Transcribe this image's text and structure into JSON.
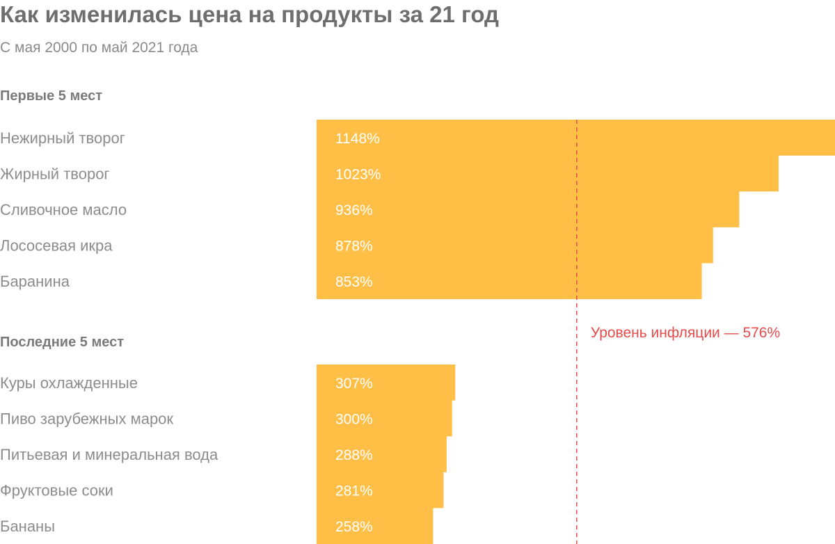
{
  "title": "Как изменилась цена на продукты за 21 год",
  "subtitle": "С мая 2000 по май 2021 года",
  "colors": {
    "bar": "#ffbf47",
    "reference": "#e84a4a",
    "text": "#8c8c8c",
    "title": "#6e6e6e"
  },
  "chart_data": [
    {
      "type": "bar",
      "orientation": "horizontal",
      "group_title": "Первые 5 мест",
      "categories": [
        "Нежирный творог",
        "Жирный творог",
        "Сливочное масло",
        "Лососевая икра",
        "Баранина"
      ],
      "values": [
        1148,
        1023,
        936,
        878,
        853
      ],
      "value_labels": [
        "1148%",
        "1023%",
        "936%",
        "878%",
        "853%"
      ],
      "unit": "%",
      "xlim": [
        0,
        1148
      ]
    },
    {
      "type": "bar",
      "orientation": "horizontal",
      "group_title": "Последние 5 мест",
      "categories": [
        "Куры охлажденные",
        "Пиво зарубежных марок",
        "Питьевая и минеральная вода",
        "Фруктовые соки",
        "Бананы"
      ],
      "values": [
        307,
        300,
        288,
        281,
        258
      ],
      "value_labels": [
        "307%",
        "300%",
        "288%",
        "281%",
        "258%"
      ],
      "unit": "%",
      "xlim": [
        0,
        1148
      ]
    }
  ],
  "reference_line": {
    "value": 576,
    "label": "Уровень инфляции — 576%"
  }
}
